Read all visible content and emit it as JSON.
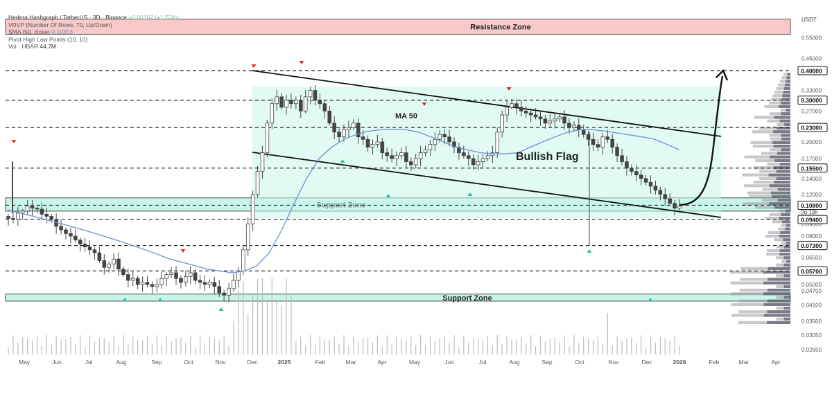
{
  "legend": {
    "title": "Hedera Hashgraph / TetherUS · 3D · Binance",
    "change": "+0.00167 (+1.57%)",
    "vrvp": "VRVP (Number Of Rows, 70, Up/Down)",
    "sma_label": "SMA (50, close)",
    "sma_value": "0.10353",
    "pivot": "Pivot High Low Points (10, 10)",
    "vol_label": "Vol · HBAR",
    "vol_value": "44.7M"
  },
  "axis_unit": "USDT",
  "colors": {
    "zone_fill": "#c8f5ea",
    "zone_border": "#222222",
    "resistance_fill": "#f7c9c9",
    "ma_line": "#6a8fd6",
    "candle": "#444444",
    "arrow_up": "#2cc2a0",
    "arrow_down": "#e0302e"
  },
  "chart_data": {
    "type": "candlestick",
    "y_scale": "log",
    "ylim": [
      0.024,
      0.75
    ],
    "x_ticks": [
      "May",
      "Jun",
      "Jul",
      "Aug",
      "Sep",
      "Oct",
      "Nov",
      "Dec",
      "2025",
      "Feb",
      "Mar",
      "Apr",
      "May",
      "Jun",
      "Jul",
      "Aug",
      "Sep",
      "Oct",
      "Nov",
      "Dec",
      "2026",
      "Feb",
      "Mar",
      "Apr"
    ],
    "y_ticks": [
      "0.55000",
      "0.45000",
      "0.33000",
      "0.27000",
      "0.20000",
      "0.17000",
      "0.14000",
      "0.12000",
      "0.09000",
      "0.08000",
      "0.06500",
      "0.05000",
      "0.04700",
      "0.04100",
      "0.03500",
      "0.03050",
      "0.02650"
    ],
    "highlight_levels": [
      "0.40000",
      "0.30000",
      "0.23000",
      "0.15500",
      "0.10800",
      "0.09400",
      "0.07300",
      "0.05700"
    ],
    "countdown": "2d 13h",
    "zones": [
      {
        "label": "Resistance Zone",
        "low": 0.57,
        "high": 0.66
      },
      {
        "label": "Support Zone",
        "low": 0.102,
        "high": 0.116
      },
      {
        "label": "Support Zone",
        "low": 0.0425,
        "high": 0.0455
      }
    ],
    "annotations": [
      "MA 50",
      "Bullish Flag"
    ],
    "flag_channel": {
      "upper_start": [
        "Dec",
        0.4
      ],
      "upper_end": [
        "Feb",
        0.215
      ],
      "lower_start": [
        "Dec",
        0.18
      ],
      "lower_end": [
        "Feb",
        0.096
      ]
    },
    "projection_target": 0.4,
    "close_series": [
      0.095,
      0.094,
      0.1,
      0.102,
      0.107,
      0.105,
      0.104,
      0.099,
      0.097,
      0.094,
      0.088,
      0.085,
      0.082,
      0.08,
      0.077,
      0.074,
      0.072,
      0.07,
      0.068,
      0.063,
      0.059,
      0.061,
      0.064,
      0.058,
      0.055,
      0.052,
      0.053,
      0.05,
      0.051,
      0.05,
      0.049,
      0.05,
      0.053,
      0.055,
      0.056,
      0.053,
      0.051,
      0.054,
      0.056,
      0.052,
      0.051,
      0.05,
      0.051,
      0.049,
      0.046,
      0.045,
      0.048,
      0.052,
      0.057,
      0.07,
      0.09,
      0.12,
      0.15,
      0.18,
      0.24,
      0.29,
      0.31,
      0.28,
      0.3,
      0.29,
      0.3,
      0.27,
      0.31,
      0.33,
      0.3,
      0.29,
      0.27,
      0.24,
      0.22,
      0.21,
      0.225,
      0.23,
      0.24,
      0.21,
      0.205,
      0.19,
      0.195,
      0.2,
      0.18,
      0.175,
      0.17,
      0.175,
      0.18,
      0.165,
      0.16,
      0.17,
      0.18,
      0.185,
      0.195,
      0.205,
      0.215,
      0.21,
      0.2,
      0.19,
      0.18,
      0.175,
      0.17,
      0.16,
      0.165,
      0.17,
      0.175,
      0.18,
      0.22,
      0.26,
      0.28,
      0.29,
      0.28,
      0.27,
      0.265,
      0.26,
      0.255,
      0.25,
      0.24,
      0.245,
      0.25,
      0.255,
      0.24,
      0.23,
      0.235,
      0.225,
      0.215,
      0.205,
      0.195,
      0.19,
      0.21,
      0.205,
      0.19,
      0.175,
      0.165,
      0.155,
      0.15,
      0.145,
      0.14,
      0.135,
      0.13,
      0.125,
      0.12,
      0.115,
      0.11,
      0.105,
      0.107
    ],
    "ma50_series": [
      0.103,
      0.1,
      0.097,
      0.094,
      0.091,
      0.088,
      0.085,
      0.082,
      0.079,
      0.076,
      0.073,
      0.07,
      0.067,
      0.064,
      0.062,
      0.06,
      0.058,
      0.057,
      0.056,
      0.057,
      0.06,
      0.068,
      0.085,
      0.11,
      0.14,
      0.17,
      0.19,
      0.205,
      0.215,
      0.222,
      0.225,
      0.226,
      0.225,
      0.22,
      0.21,
      0.2,
      0.19,
      0.185,
      0.18,
      0.178,
      0.178,
      0.18,
      0.19,
      0.2,
      0.21,
      0.22,
      0.225,
      0.225,
      0.222,
      0.218,
      0.214,
      0.21,
      0.205,
      0.195,
      0.185
    ]
  }
}
